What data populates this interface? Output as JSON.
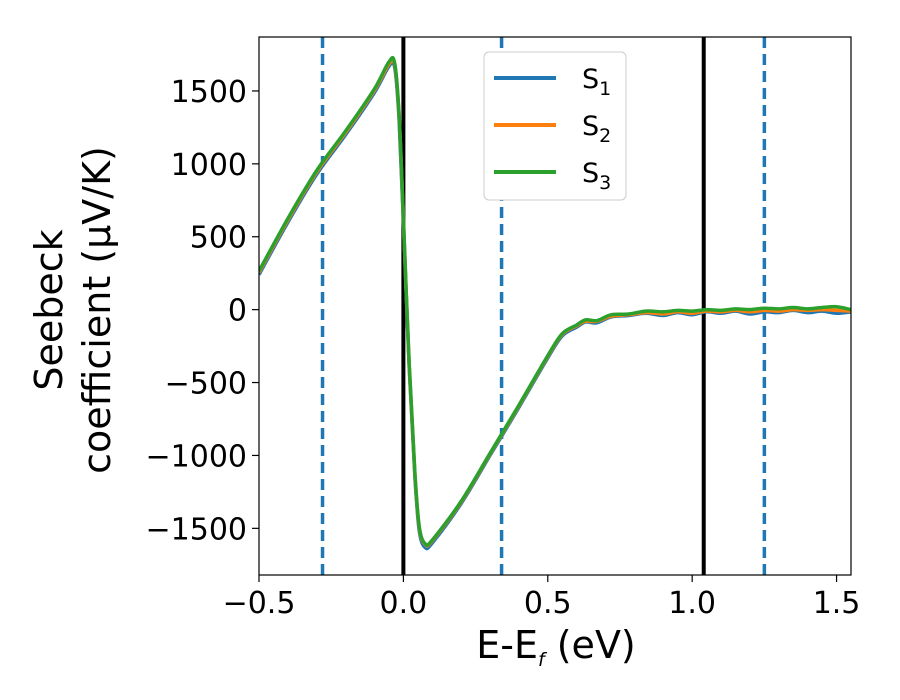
{
  "chart_data": {
    "type": "line",
    "xlabel_main": "E-E",
    "xlabel_sub": "f",
    "xlabel_tail": " (eV)",
    "ylabel_line1": "Seebeck",
    "ylabel_line2": "coefficient  (μV/K)",
    "xlim": [
      -0.5,
      1.55
    ],
    "ylim": [
      -1820,
      1870
    ],
    "xticks": [
      -0.5,
      0.0,
      0.5,
      1.0,
      1.5
    ],
    "xtick_labels": [
      "−0.5",
      "0.0",
      "0.5",
      "1.0",
      "1.5"
    ],
    "yticks": [
      -1500,
      -1000,
      -500,
      0,
      500,
      1000,
      1500
    ],
    "ytick_labels": [
      "−1500",
      "−1000",
      "−500",
      "0",
      "500",
      "1000",
      "1500"
    ],
    "vlines_solid": [
      0.0,
      1.04
    ],
    "vlines_dashed": [
      -0.28,
      0.34,
      1.25
    ],
    "legend_position": "upper center",
    "series": [
      {
        "name_main": "S",
        "name_sub": "1",
        "color": "#1f77b4",
        "points": [
          [
            -0.5,
            240
          ],
          [
            -0.4,
            600
          ],
          [
            -0.3,
            930
          ],
          [
            -0.2,
            1200
          ],
          [
            -0.1,
            1490
          ],
          [
            -0.05,
            1670
          ],
          [
            -0.03,
            1660
          ],
          [
            -0.015,
            1300
          ],
          [
            0.0,
            600
          ],
          [
            0.02,
            -400
          ],
          [
            0.04,
            -1150
          ],
          [
            0.055,
            -1520
          ],
          [
            0.075,
            -1630
          ],
          [
            0.1,
            -1600
          ],
          [
            0.2,
            -1330
          ],
          [
            0.3,
            -1000
          ],
          [
            0.4,
            -670
          ],
          [
            0.5,
            -330
          ],
          [
            0.55,
            -180
          ],
          [
            0.6,
            -120
          ],
          [
            0.63,
            -85
          ],
          [
            0.67,
            -90
          ],
          [
            0.72,
            -50
          ],
          [
            0.78,
            -40
          ],
          [
            0.84,
            -25
          ],
          [
            0.9,
            -40
          ],
          [
            0.95,
            -20
          ],
          [
            1.0,
            -35
          ],
          [
            1.05,
            -15
          ],
          [
            1.1,
            -25
          ],
          [
            1.15,
            -10
          ],
          [
            1.2,
            -30
          ],
          [
            1.25,
            -15
          ],
          [
            1.3,
            -20
          ],
          [
            1.35,
            -5
          ],
          [
            1.4,
            -20
          ],
          [
            1.45,
            -10
          ],
          [
            1.5,
            -25
          ],
          [
            1.55,
            -15
          ]
        ]
      },
      {
        "name_main": "S",
        "name_sub": "2",
        "color": "#ff7f0e",
        "points": [
          [
            -0.5,
            255
          ],
          [
            -0.4,
            615
          ],
          [
            -0.3,
            945
          ],
          [
            -0.2,
            1215
          ],
          [
            -0.1,
            1505
          ],
          [
            -0.05,
            1685
          ],
          [
            -0.03,
            1680
          ],
          [
            -0.015,
            1330
          ],
          [
            0.0,
            620
          ],
          [
            0.02,
            -380
          ],
          [
            0.04,
            -1130
          ],
          [
            0.055,
            -1500
          ],
          [
            0.075,
            -1610
          ],
          [
            0.1,
            -1585
          ],
          [
            0.2,
            -1320
          ],
          [
            0.3,
            -990
          ],
          [
            0.4,
            -660
          ],
          [
            0.5,
            -320
          ],
          [
            0.55,
            -170
          ],
          [
            0.6,
            -110
          ],
          [
            0.63,
            -80
          ],
          [
            0.67,
            -80
          ],
          [
            0.72,
            -45
          ],
          [
            0.78,
            -35
          ],
          [
            0.84,
            -20
          ],
          [
            0.9,
            -30
          ],
          [
            0.95,
            -15
          ],
          [
            1.0,
            -25
          ],
          [
            1.05,
            -10
          ],
          [
            1.1,
            -15
          ],
          [
            1.15,
            -5
          ],
          [
            1.2,
            -15
          ],
          [
            1.25,
            -5
          ],
          [
            1.3,
            -10
          ],
          [
            1.35,
            0
          ],
          [
            1.4,
            -5
          ],
          [
            1.45,
            0
          ],
          [
            1.5,
            -5
          ],
          [
            1.55,
            -10
          ]
        ]
      },
      {
        "name_main": "S",
        "name_sub": "3",
        "color": "#2ca02c",
        "points": [
          [
            -0.5,
            265
          ],
          [
            -0.4,
            625
          ],
          [
            -0.3,
            955
          ],
          [
            -0.2,
            1225
          ],
          [
            -0.1,
            1515
          ],
          [
            -0.05,
            1700
          ],
          [
            -0.03,
            1690
          ],
          [
            -0.015,
            1340
          ],
          [
            0.0,
            630
          ],
          [
            0.02,
            -370
          ],
          [
            0.04,
            -1120
          ],
          [
            0.055,
            -1490
          ],
          [
            0.075,
            -1605
          ],
          [
            0.1,
            -1580
          ],
          [
            0.2,
            -1315
          ],
          [
            0.3,
            -985
          ],
          [
            0.4,
            -655
          ],
          [
            0.5,
            -315
          ],
          [
            0.55,
            -165
          ],
          [
            0.6,
            -105
          ],
          [
            0.63,
            -70
          ],
          [
            0.67,
            -75
          ],
          [
            0.72,
            -35
          ],
          [
            0.78,
            -30
          ],
          [
            0.84,
            -10
          ],
          [
            0.9,
            -15
          ],
          [
            0.95,
            -5
          ],
          [
            1.0,
            -10
          ],
          [
            1.05,
            0
          ],
          [
            1.1,
            -5
          ],
          [
            1.15,
            5
          ],
          [
            1.2,
            0
          ],
          [
            1.25,
            10
          ],
          [
            1.3,
            5
          ],
          [
            1.35,
            15
          ],
          [
            1.4,
            5
          ],
          [
            1.45,
            15
          ],
          [
            1.5,
            20
          ],
          [
            1.55,
            0
          ]
        ]
      }
    ]
  }
}
